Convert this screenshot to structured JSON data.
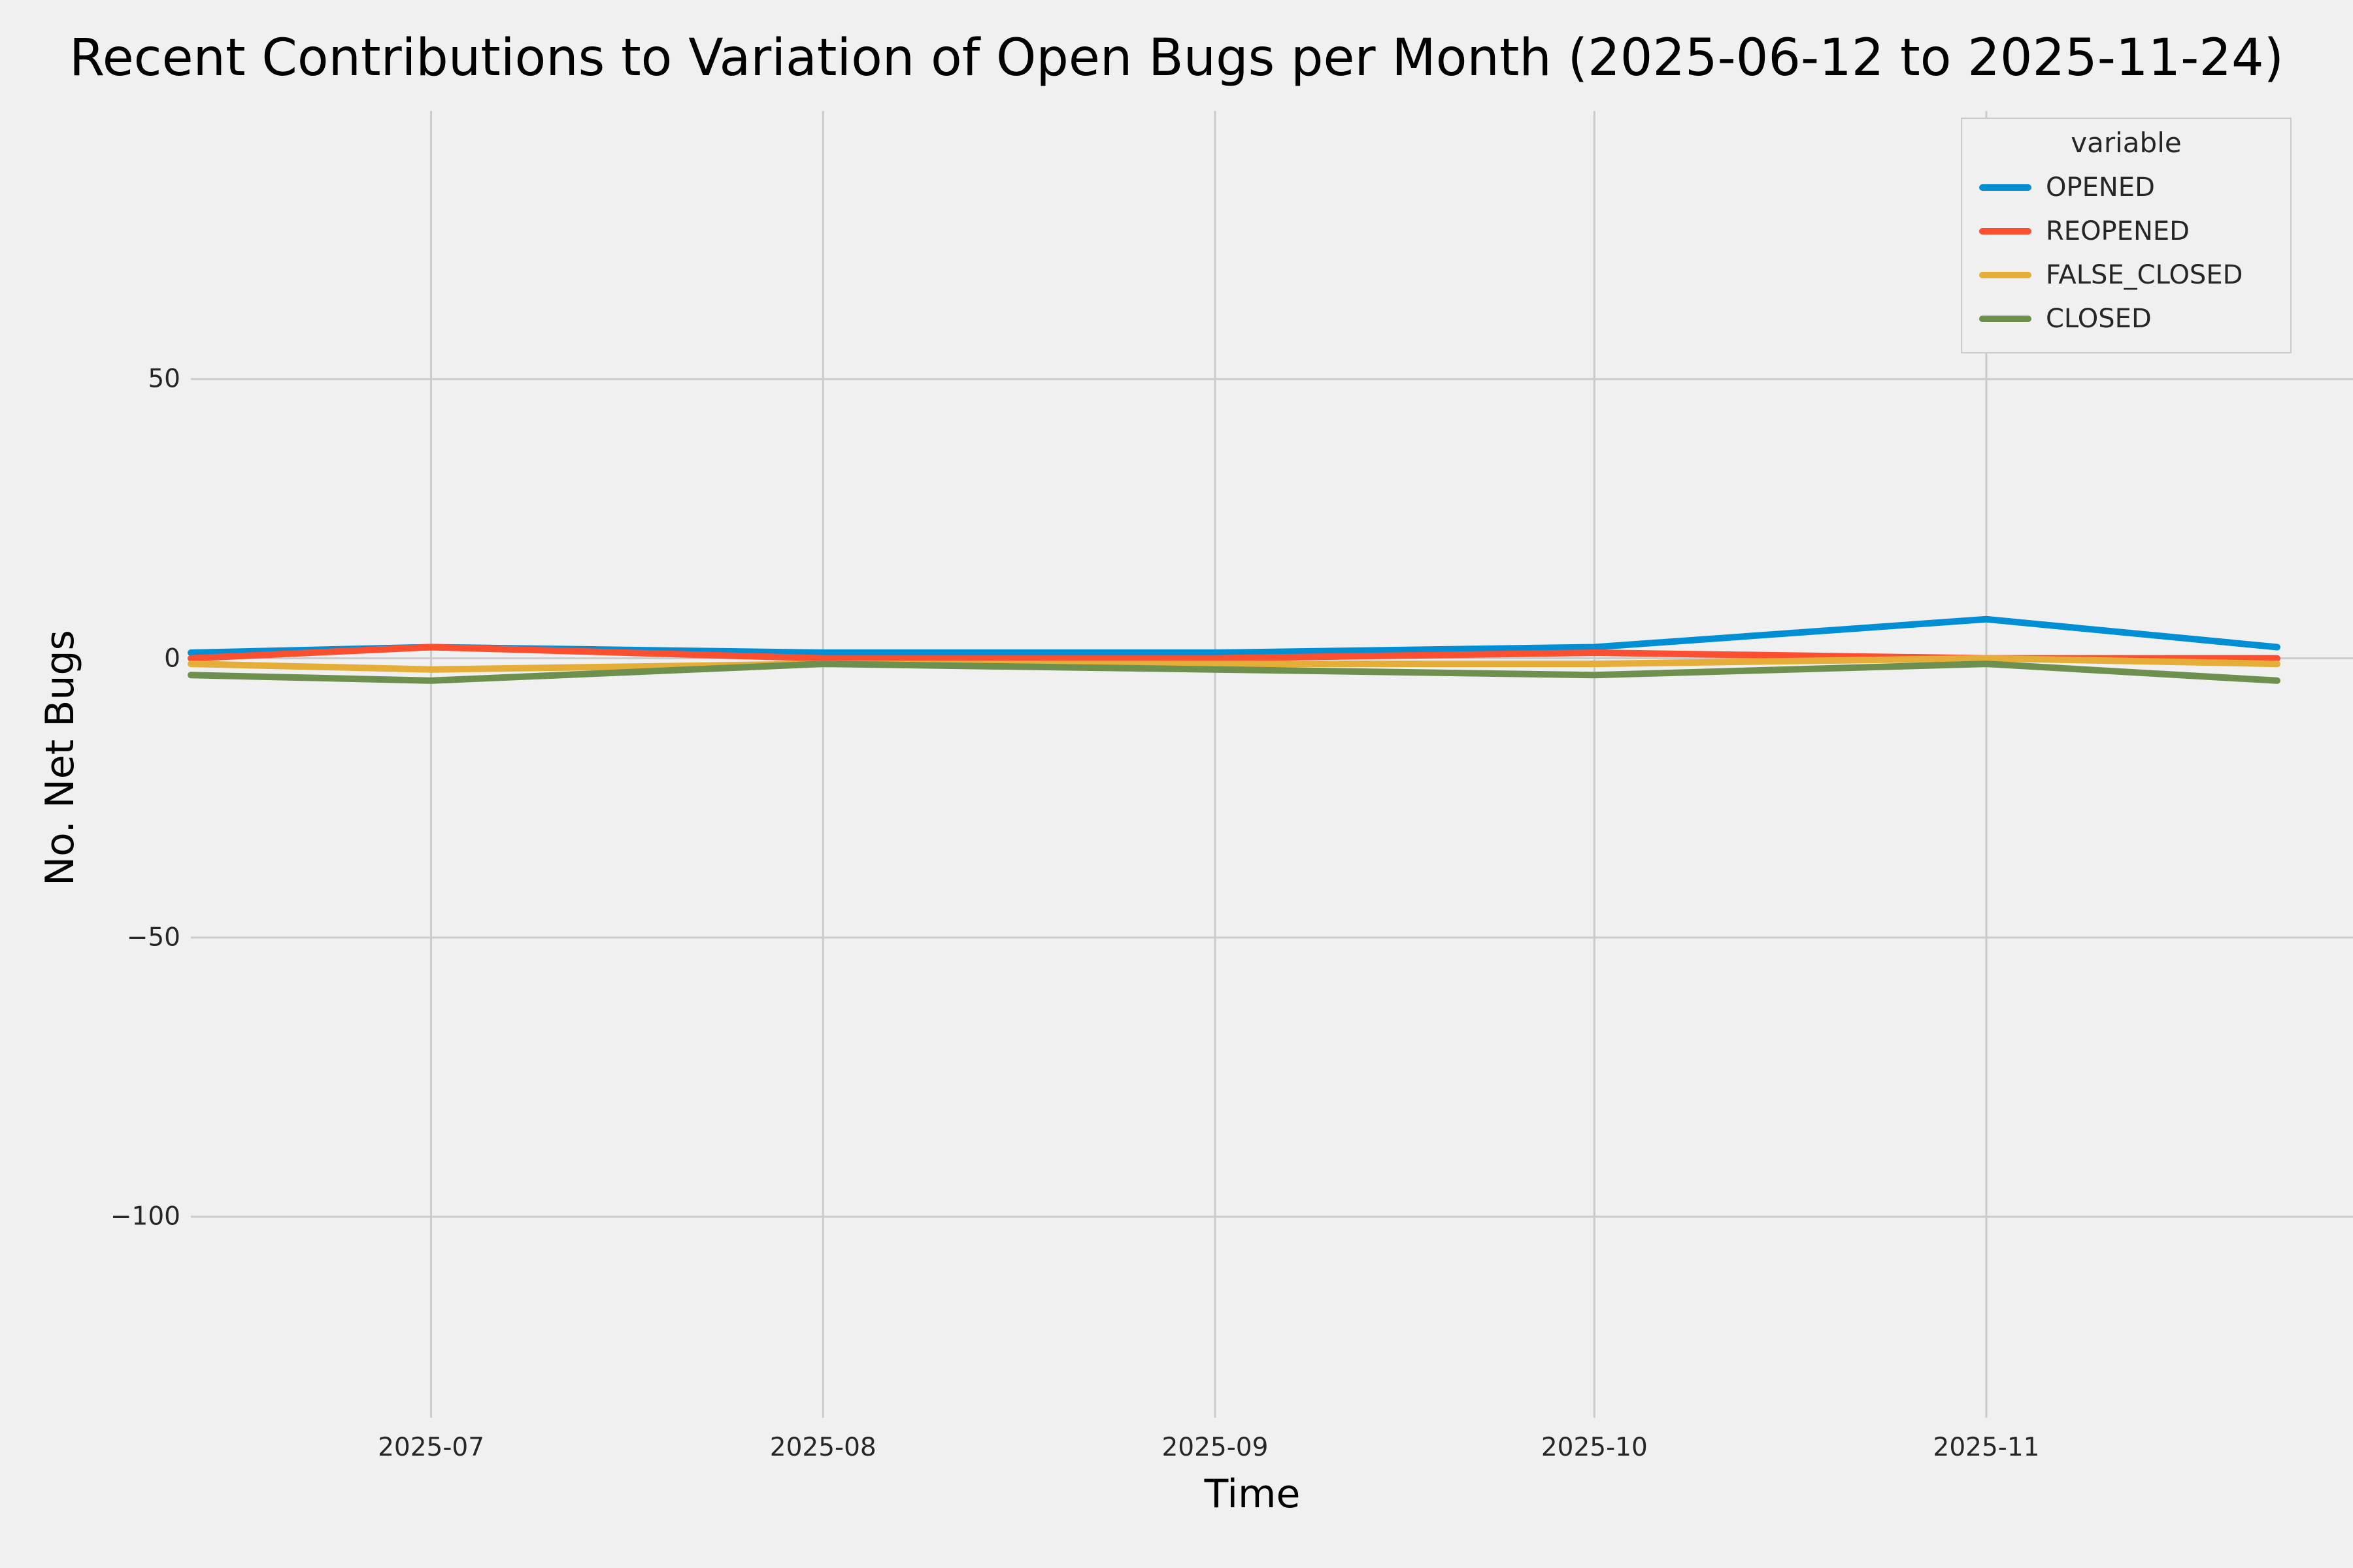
{
  "figure": {
    "background": "#f0f0f0",
    "grid_color": "#cbcbcb",
    "text_color": "#262626"
  },
  "chart_data": {
    "type": "line",
    "title": "Recent Contributions to Variation of Open Bugs per Month (2025-06-12 to 2025-11-24)",
    "xlabel": "Time",
    "ylabel": "No. Net Bugs",
    "legend_title": "variable",
    "legend_position": "upper right",
    "grid": true,
    "x_dates": [
      "2025-06-12",
      "2025-07-01",
      "2025-08-01",
      "2025-09-01",
      "2025-10-01",
      "2025-11-01",
      "2025-11-24"
    ],
    "x_days": [
      0,
      19,
      50,
      81,
      111,
      142,
      165
    ],
    "series": [
      {
        "name": "OPENED",
        "color": "#008fd5",
        "values": [
          1,
          2,
          1,
          1,
          2,
          7,
          2
        ]
      },
      {
        "name": "REOPENED",
        "color": "#fc4f30",
        "values": [
          0,
          2,
          0,
          0,
          1,
          0,
          0
        ]
      },
      {
        "name": "FALSE_CLOSED",
        "color": "#e5ae38",
        "values": [
          -1,
          -2,
          -1,
          -1,
          -1,
          0,
          -1
        ]
      },
      {
        "name": "CLOSED",
        "color": "#6d904f",
        "values": [
          -3,
          -4,
          -1,
          -2,
          -3,
          -1,
          -4
        ]
      }
    ],
    "x_ticks": [
      {
        "label": "2025-07",
        "day": 19
      },
      {
        "label": "2025-08",
        "day": 50
      },
      {
        "label": "2025-09",
        "day": 81
      },
      {
        "label": "2025-10",
        "day": 111
      },
      {
        "label": "2025-11",
        "day": 142
      }
    ],
    "y_ticks": [
      {
        "label": "50",
        "value": 50
      },
      {
        "label": "0",
        "value": 0
      },
      {
        "label": "−50",
        "value": -50
      },
      {
        "label": "−100",
        "value": -100
      }
    ],
    "ylim": [
      -136,
      98
    ],
    "xlim_days": [
      0,
      171
    ],
    "line_width": 10
  }
}
